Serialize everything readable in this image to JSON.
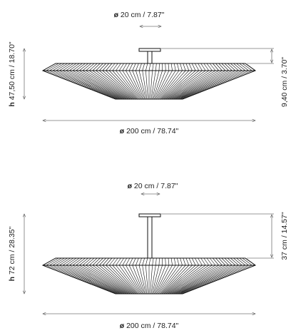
{
  "views": [
    {
      "id": "short",
      "top_diameter": {
        "prefix": "ø",
        "value": "20 cm / 7.87\""
      },
      "stem_height": "9,40 cm / 3.70\"",
      "total_height": {
        "prefix": "h",
        "value": "47,50 cm / 18.70\""
      },
      "diameter": {
        "prefix": "ø",
        "value": "200 cm / 78.74\""
      }
    },
    {
      "id": "tall",
      "top_diameter": {
        "prefix": "ø",
        "value": "20 cm / 7.87\""
      },
      "stem_height": "37 cm / 14.57\"",
      "total_height": {
        "prefix": "h",
        "value": "72 cm / 28.35\""
      },
      "diameter": {
        "prefix": "ø",
        "value": "200 cm / 78.74\""
      }
    }
  ]
}
